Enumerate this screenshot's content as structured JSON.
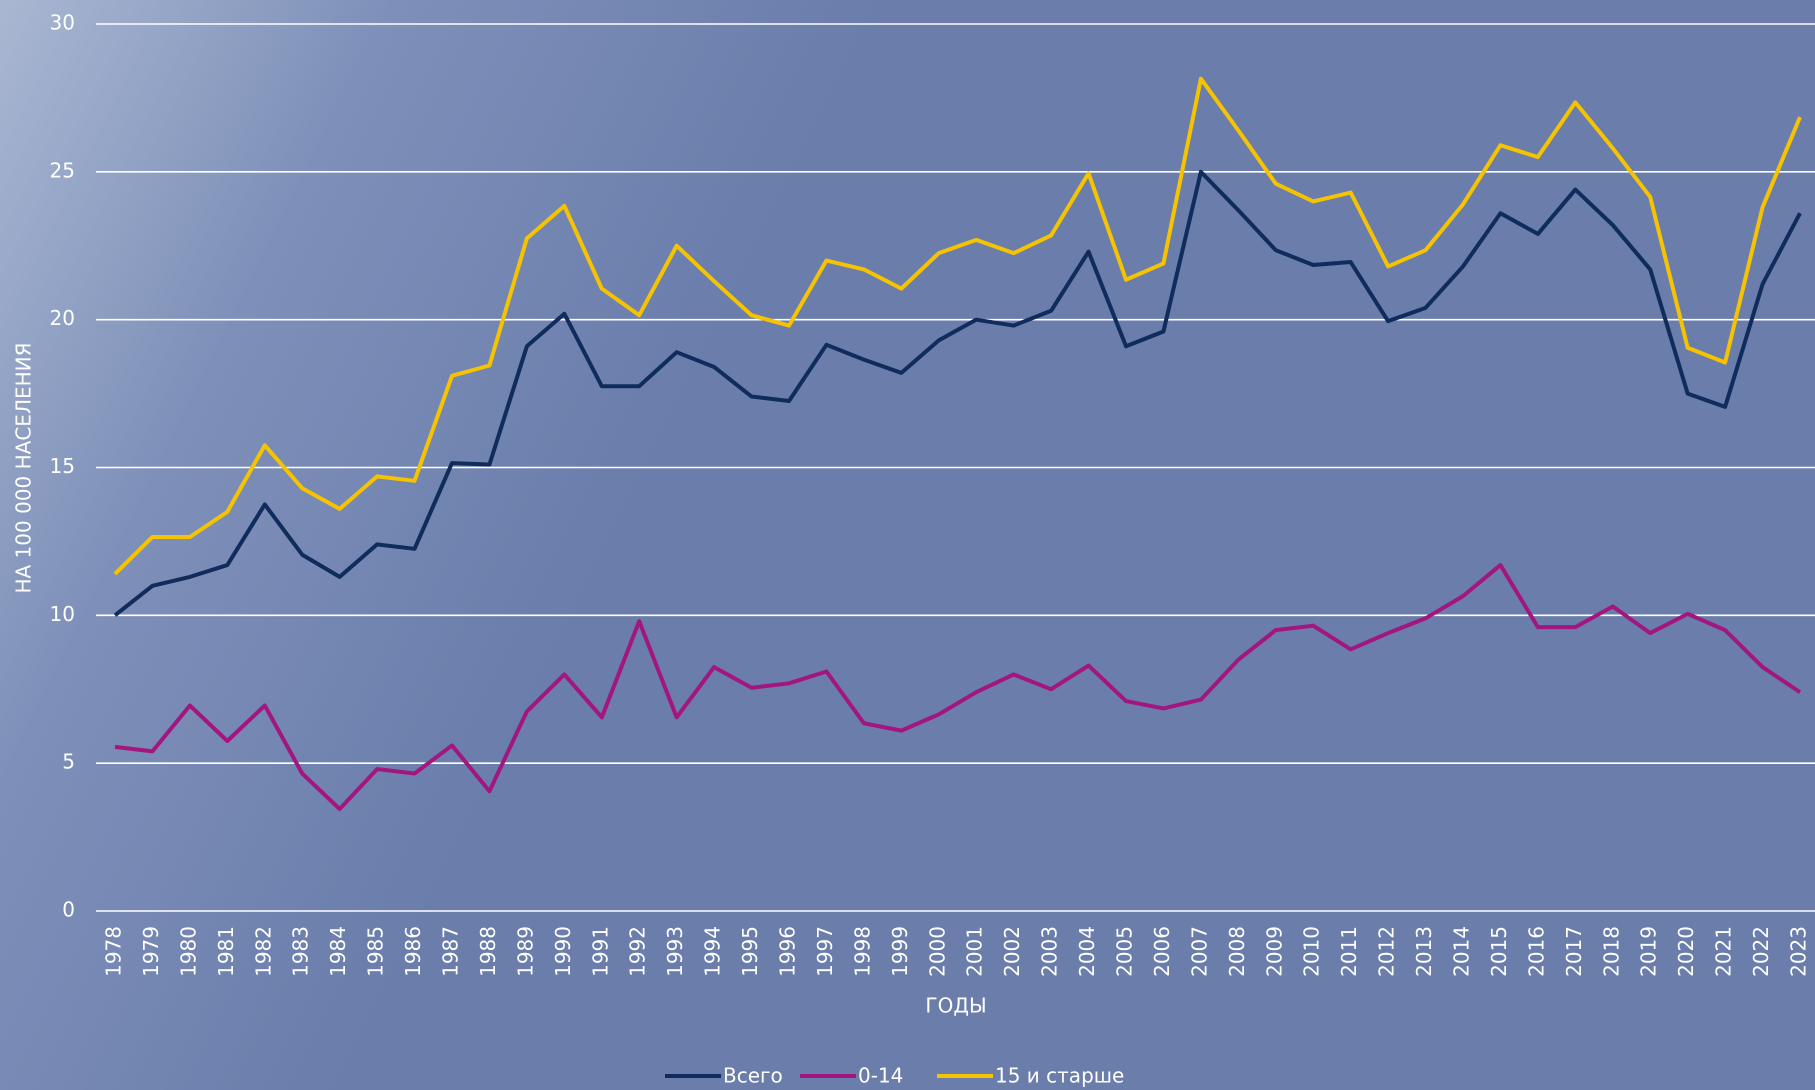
{
  "chart_data": {
    "type": "line",
    "xlabel": "ГОДЫ",
    "ylabel": "НА 100 000 НАСЕЛЕНИЯ",
    "x": [
      1978,
      1979,
      1980,
      1981,
      1982,
      1983,
      1984,
      1985,
      1986,
      1987,
      1988,
      1989,
      1990,
      1991,
      1992,
      1993,
      1994,
      1995,
      1996,
      1997,
      1998,
      1999,
      2000,
      2001,
      2002,
      2003,
      2004,
      2005,
      2006,
      2007,
      2008,
      2009,
      2010,
      2011,
      2012,
      2013,
      2014,
      2015,
      2016,
      2017,
      2018,
      2019,
      2020,
      2021,
      2022,
      2023
    ],
    "xlim": [
      1978,
      2023
    ],
    "ylim": [
      0,
      30
    ],
    "yticks": [
      0,
      5,
      10,
      15,
      20,
      25,
      30
    ],
    "grid": true,
    "legend": "bottom",
    "series": [
      {
        "name": "Всего",
        "color": "#0f2c5c",
        "values": [
          10.0,
          11.0,
          11.3,
          11.7,
          13.75,
          12.05,
          11.3,
          12.4,
          12.25,
          15.15,
          15.1,
          19.1,
          20.2,
          17.75,
          17.75,
          18.9,
          18.4,
          17.4,
          17.25,
          19.15,
          18.65,
          18.2,
          19.3,
          20.0,
          19.8,
          20.3,
          22.3,
          19.1,
          19.6,
          25.0,
          23.7,
          22.35,
          21.85,
          21.95,
          19.95,
          20.4,
          21.8,
          23.6,
          22.9,
          24.4,
          23.2,
          21.7,
          17.5,
          17.05,
          21.2,
          23.6
        ]
      },
      {
        "name": "0-14",
        "color": "#a3167f",
        "values": [
          5.55,
          5.4,
          6.95,
          5.75,
          6.95,
          4.65,
          3.45,
          4.8,
          4.65,
          5.6,
          4.05,
          6.75,
          8.0,
          6.55,
          9.8,
          6.55,
          8.25,
          7.55,
          7.7,
          8.1,
          6.35,
          6.1,
          6.65,
          7.4,
          8.0,
          7.5,
          8.3,
          7.1,
          6.85,
          7.15,
          8.5,
          9.5,
          9.65,
          8.85,
          9.4,
          9.9,
          10.65,
          11.7,
          9.6,
          9.6,
          10.3,
          9.4,
          10.05,
          9.5,
          8.25,
          7.4
        ]
      },
      {
        "name": "15 и старше",
        "color": "#f6c300",
        "values": [
          11.4,
          12.65,
          12.65,
          13.5,
          15.75,
          14.3,
          13.6,
          14.7,
          14.55,
          18.1,
          18.45,
          22.75,
          23.85,
          21.05,
          20.15,
          22.5,
          21.3,
          20.15,
          19.8,
          22.0,
          21.7,
          21.05,
          22.25,
          22.7,
          22.25,
          22.85,
          24.95,
          21.35,
          21.9,
          28.15,
          26.4,
          24.6,
          24.0,
          24.3,
          21.8,
          22.35,
          23.9,
          25.9,
          25.5,
          27.35,
          25.8,
          24.15,
          19.05,
          18.55,
          23.8,
          26.85
        ]
      }
    ]
  }
}
